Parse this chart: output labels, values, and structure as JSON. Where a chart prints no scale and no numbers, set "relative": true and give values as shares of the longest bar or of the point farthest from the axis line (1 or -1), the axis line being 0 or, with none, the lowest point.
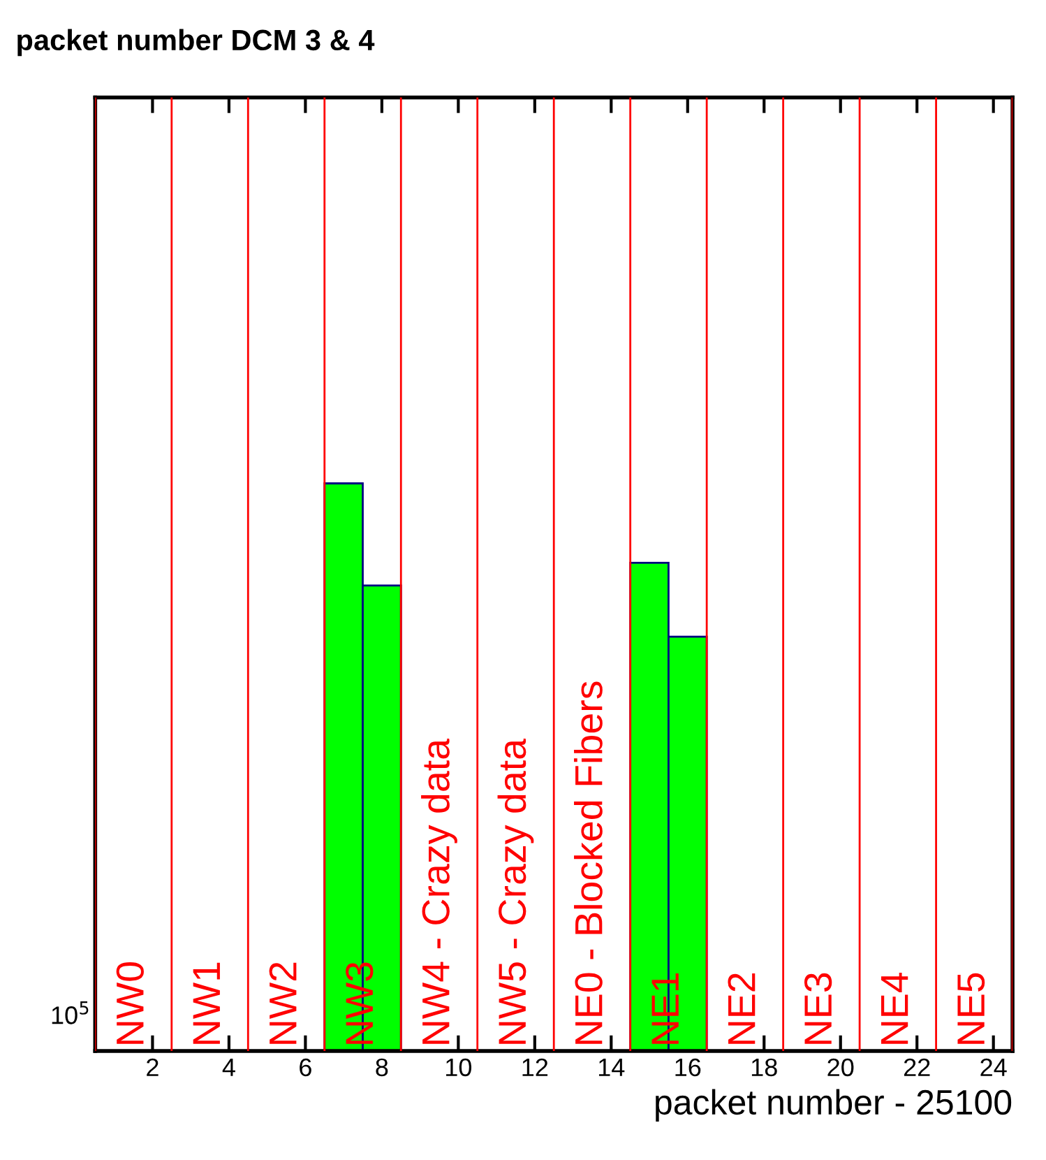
{
  "chart_data": {
    "type": "bar",
    "title": "packet number DCM 3 & 4",
    "xlabel": "packet number - 25100",
    "x": [
      1,
      2,
      3,
      4,
      5,
      6,
      7,
      8,
      9,
      10,
      11,
      12,
      13,
      14,
      15,
      16,
      17,
      18,
      19,
      20,
      21,
      22,
      23,
      24
    ],
    "values": [
      0,
      0,
      0,
      0,
      0,
      0,
      1,
      0.82,
      0,
      0,
      0,
      0,
      0,
      0,
      0.86,
      0.73,
      0,
      0,
      0,
      0,
      0,
      0,
      0,
      0
    ],
    "color": "#00ff00",
    "relative": true,
    "xlim": [
      0.5,
      24.5
    ],
    "xticks": [
      2,
      4,
      6,
      8,
      10,
      12,
      14,
      16,
      18,
      20,
      22,
      24
    ],
    "annotations": [
      "10$^{5}$"
    ],
    "ref_lines": [
      {
        "axis": "x",
        "value": 0.5,
        "label": "NW0",
        "color": "#ff0000"
      },
      {
        "axis": "x",
        "value": 2.5,
        "label": "NW1",
        "color": "#ff0000"
      },
      {
        "axis": "x",
        "value": 4.5,
        "label": "NW2",
        "color": "#ff0000"
      },
      {
        "axis": "x",
        "value": 6.5,
        "label": "NW3",
        "color": "#ff0000"
      },
      {
        "axis": "x",
        "value": 8.5,
        "label": "NW4 - Crazy data",
        "color": "#ff0000"
      },
      {
        "axis": "x",
        "value": 10.5,
        "label": "NW5 - Crazy data",
        "color": "#ff0000"
      },
      {
        "axis": "x",
        "value": 12.5,
        "label": "NE0 - Blocked Fibers",
        "color": "#ff0000"
      },
      {
        "axis": "x",
        "value": 14.5,
        "label": "NE1",
        "color": "#ff0000"
      },
      {
        "axis": "x",
        "value": 16.5,
        "label": "NE2",
        "color": "#ff0000"
      },
      {
        "axis": "x",
        "value": 18.5,
        "label": "NE3",
        "color": "#ff0000"
      },
      {
        "axis": "x",
        "value": 20.5,
        "label": "NE4",
        "color": "#ff0000"
      },
      {
        "axis": "x",
        "value": 22.5,
        "label": "NE5",
        "color": "#ff0000"
      },
      {
        "axis": "x",
        "value": 24.5,
        "label": null,
        "color": "#ff0000"
      }
    ]
  }
}
